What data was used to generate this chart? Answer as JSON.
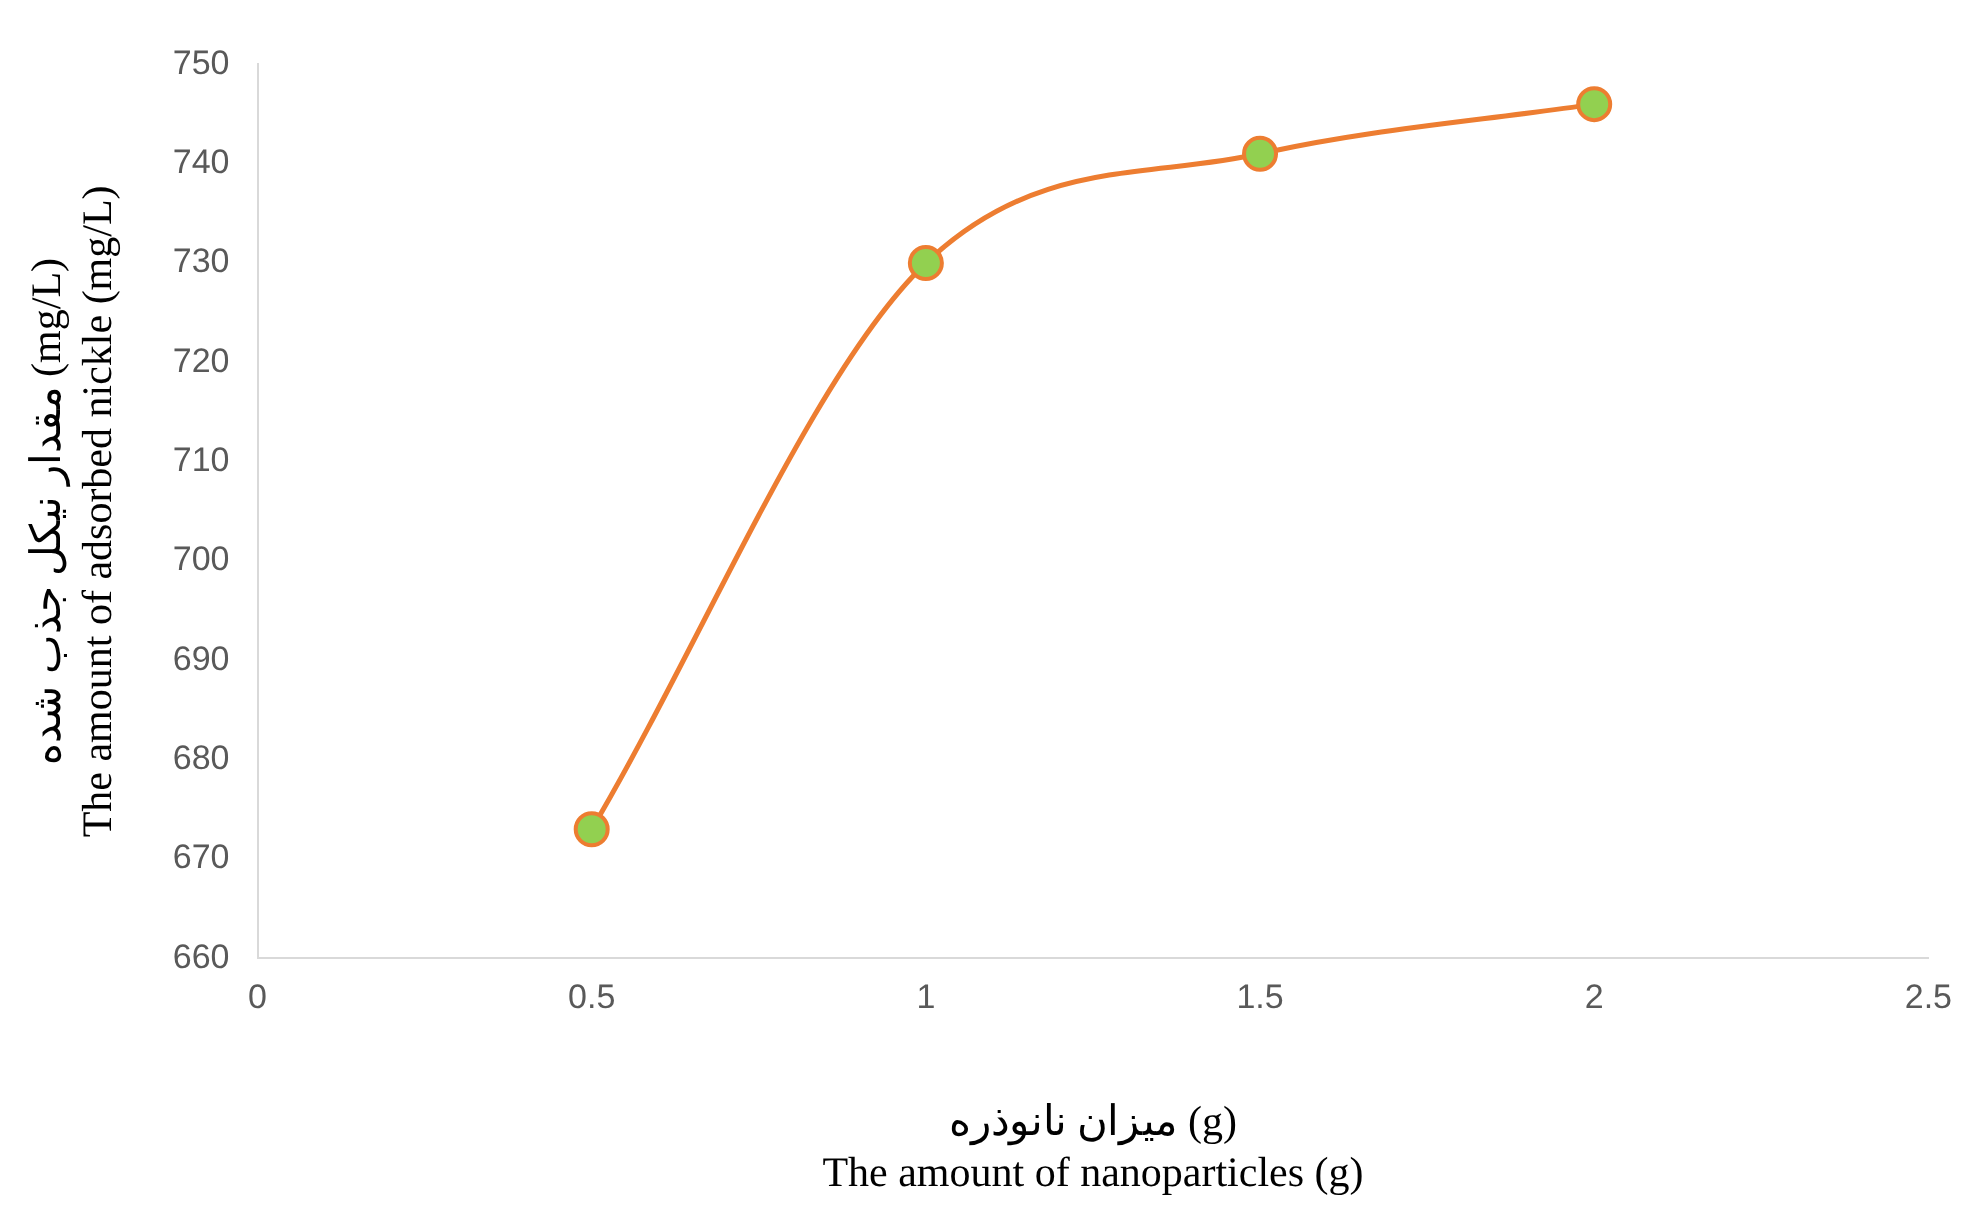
{
  "chart_data": {
    "type": "line",
    "xlabel": "میزان نانوذره (g)\nThe amount of nanoparticles (g)",
    "ylabel": "مقدار نیکل جذب شده (mg/L)\nThe amount of adsorbed nickle (mg/L)",
    "x": [
      0.5,
      1,
      1.5,
      2
    ],
    "series": [
      {
        "color": "#ed7d31",
        "values": [
          673,
          730,
          741,
          746
        ]
      }
    ],
    "xlim": [
      0,
      2.5
    ],
    "xticks": [
      0,
      0.5,
      1,
      1.5,
      2,
      2.5
    ],
    "ylim": [
      660,
      750
    ],
    "yticks": [
      660,
      670,
      680,
      690,
      700,
      710,
      720,
      730,
      740,
      750
    ],
    "grid": false,
    "legend": false,
    "marker": "circle",
    "line_style": "solid"
  }
}
